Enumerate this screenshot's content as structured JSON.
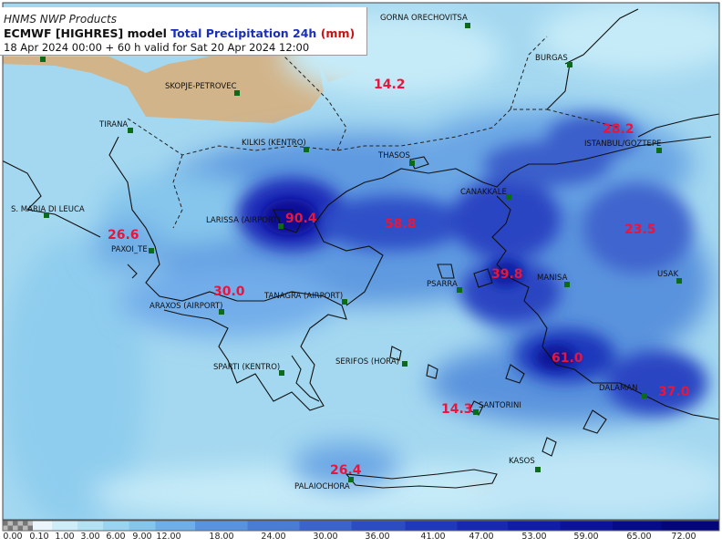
{
  "header": {
    "source": "HNMS NWP Products",
    "model_prefix": "ECMWF [HIGHRES] model",
    "variable": "Total Precipitation 24h",
    "unit": "(mm)",
    "validity": "18 Apr 2024 00:00 + 60 h valid for Sat 20 Apr 2024 12:00"
  },
  "cities": [
    {
      "name": "GORNA ORECHOVITSA"
    },
    {
      "name": "BURGAS"
    },
    {
      "name": "SKOPJE-PETROVEC"
    },
    {
      "name": "TIRANA"
    },
    {
      "name": "KILKIS (KENTRO)"
    },
    {
      "name": "THASOS"
    },
    {
      "name": "ISTANBUL/GOZTEPE"
    },
    {
      "name": "CANAKKALE"
    },
    {
      "name": "S. MARIA DI LEUCA"
    },
    {
      "name": "LARISSA (AIRPORT)"
    },
    {
      "name": "PAXOI_TE"
    },
    {
      "name": "MANISA"
    },
    {
      "name": "USAK"
    },
    {
      "name": "PSARRA"
    },
    {
      "name": "TANAGRA (AIRPORT)"
    },
    {
      "name": "ARAXOS (AIRPORT)"
    },
    {
      "name": "SPARTI (KENTRO)"
    },
    {
      "name": "SERIFOS (HORA)"
    },
    {
      "name": "SANTORINI"
    },
    {
      "name": "DALAMAN"
    },
    {
      "name": "KASOS"
    },
    {
      "name": "PALAIOCHORA"
    }
  ],
  "max_values": [
    "14.2",
    "28.2",
    "90.4",
    "58.8",
    "23.5",
    "26.6",
    "39.8",
    "30.0",
    "61.0",
    "14.3",
    "37.0",
    "26.4"
  ],
  "legend": {
    "ticks": [
      "0.00",
      "0.10",
      "1.00",
      "3.00",
      "6.00",
      "9.00",
      "12.00",
      "18.00",
      "24.00",
      "30.00",
      "36.00",
      "41.00",
      "47.00",
      "53.00",
      "59.00",
      "65.00",
      "72.00"
    ],
    "colors": [
      "#ffffff",
      "#eaf6fc",
      "#cdeef9",
      "#b4e2f5",
      "#9ad4f0",
      "#86c6ec",
      "#6faee6",
      "#5a93dd",
      "#4a7bd5",
      "#3a63cc",
      "#2c4cc4",
      "#2038bb",
      "#1729b3",
      "#0f1da8",
      "#0a1399",
      "#060b8a",
      "#03057a"
    ]
  },
  "colors": {
    "land": "#d2b48a",
    "precip_light": "#a4d8f0",
    "precip_heavy": "#1620b5",
    "station_marker": "#0b6b1b",
    "value_label": "#e8153c"
  }
}
